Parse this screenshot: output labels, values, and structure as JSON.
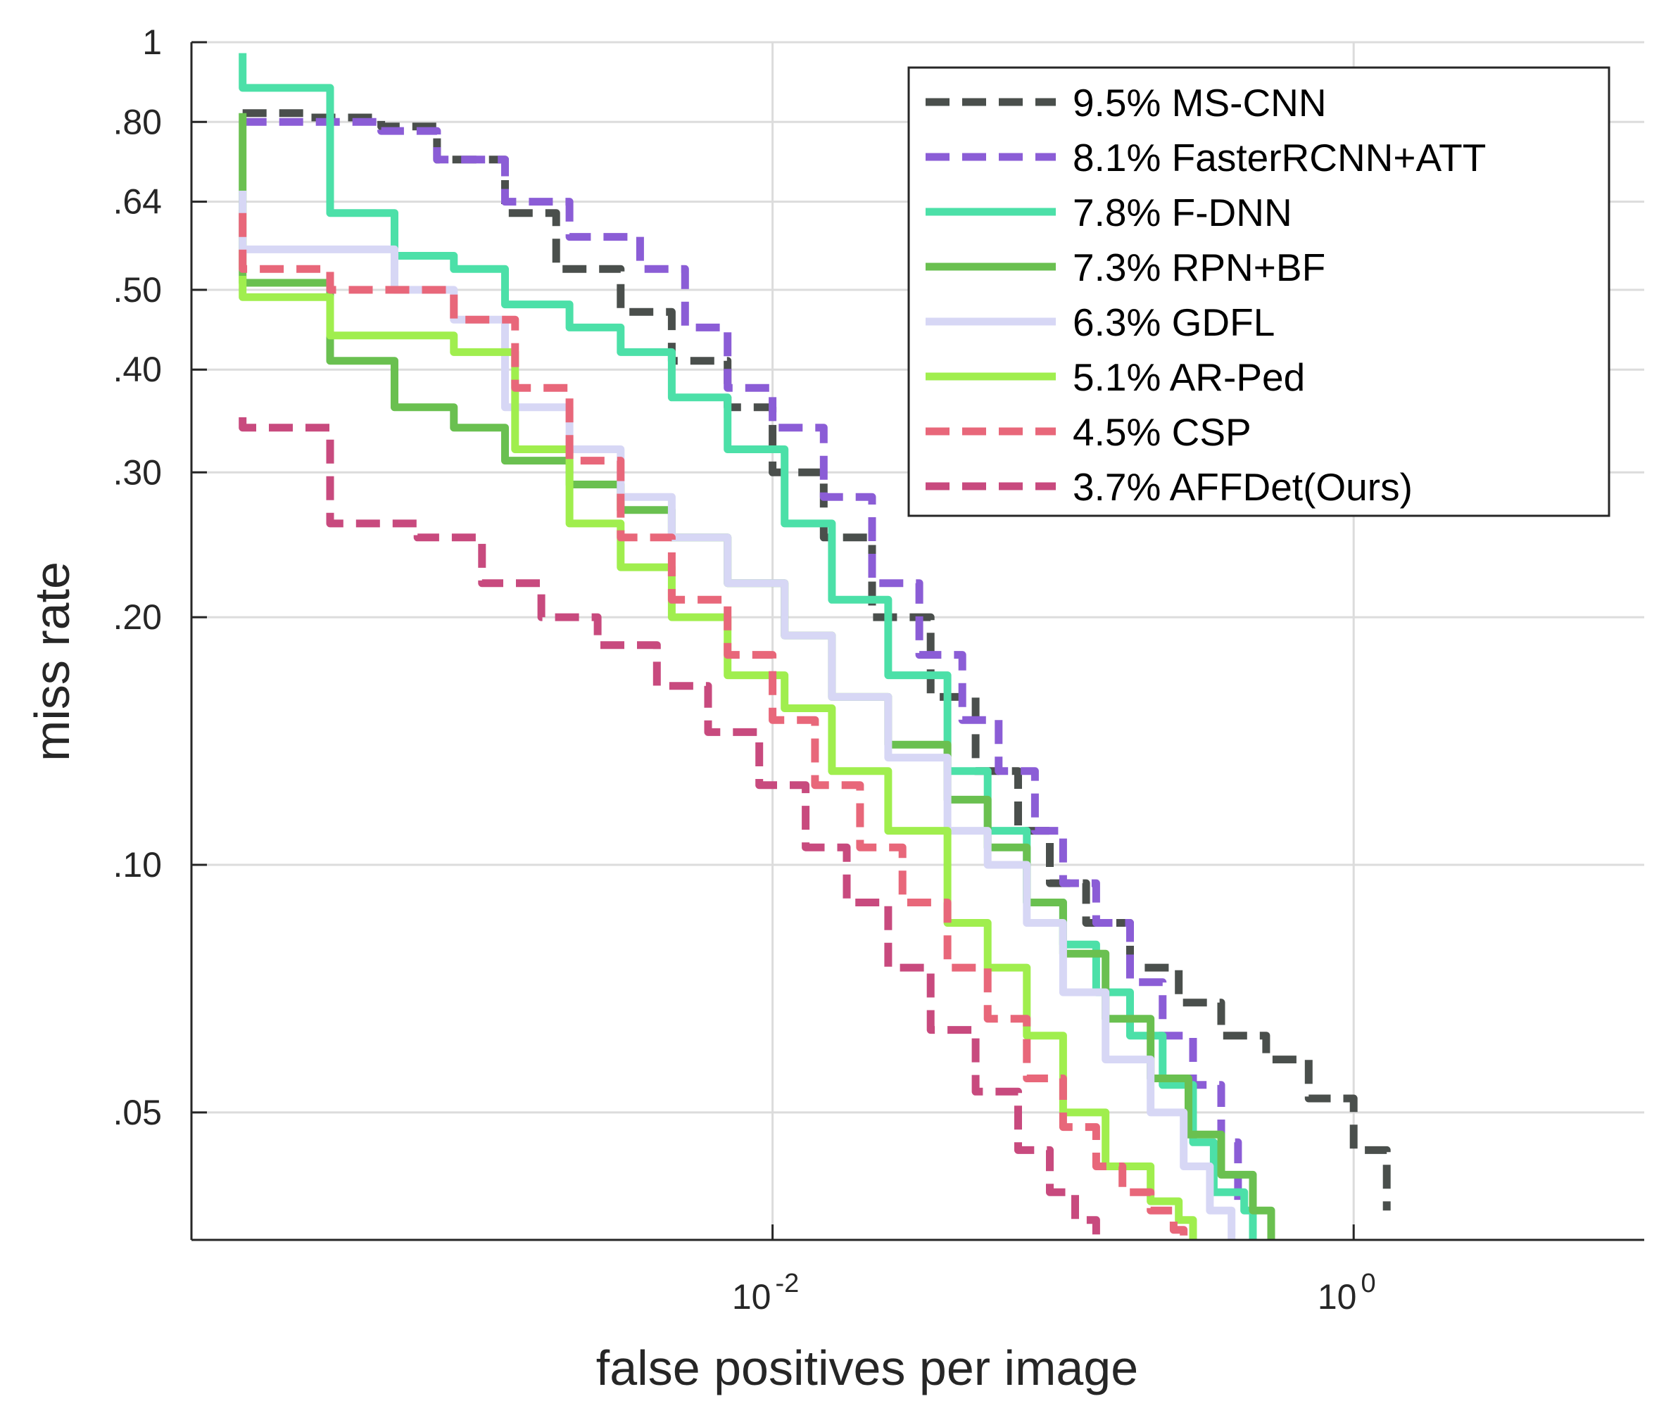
{
  "chart_data": {
    "type": "line",
    "xlabel": "false positives per image",
    "ylabel": "miss rate",
    "xscale": "log",
    "yscale": "log",
    "xlim": [
      0.0001,
      10
    ],
    "ylim": [
      0.035,
      1
    ],
    "grid": true,
    "legend_position": "top-right",
    "x_ticks": [
      {
        "value": 0.01,
        "base": "10",
        "exp": "-2"
      },
      {
        "value": 1,
        "base": "10",
        "exp": "0"
      }
    ],
    "y_ticks": [
      {
        "value": 1,
        "label": "1"
      },
      {
        "value": 0.8,
        "label": ".80"
      },
      {
        "value": 0.64,
        "label": ".64"
      },
      {
        "value": 0.5,
        "label": ".50"
      },
      {
        "value": 0.4,
        "label": ".40"
      },
      {
        "value": 0.3,
        "label": ".30"
      },
      {
        "value": 0.2,
        "label": ".20"
      },
      {
        "value": 0.1,
        "label": ".10"
      },
      {
        "value": 0.05,
        "label": ".05"
      }
    ],
    "series": [
      {
        "name": "MS-CNN",
        "label": "9.5% MS-CNN",
        "color": "#4a4f4c",
        "dash": true,
        "x": [
          0.00015,
          0.00025,
          0.00045,
          0.0007,
          0.0012,
          0.0018,
          0.003,
          0.0045,
          0.007,
          0.01,
          0.015,
          0.022,
          0.035,
          0.05,
          0.07,
          0.09,
          0.12,
          0.17,
          0.25,
          0.35,
          0.5,
          0.7,
          1.0,
          1.3
        ],
        "y": [
          0.82,
          0.81,
          0.79,
          0.72,
          0.62,
          0.53,
          0.47,
          0.41,
          0.36,
          0.3,
          0.25,
          0.2,
          0.16,
          0.13,
          0.11,
          0.095,
          0.085,
          0.075,
          0.068,
          0.062,
          0.058,
          0.052,
          0.045,
          0.038
        ]
      },
      {
        "name": "FasterRCNN+ATT",
        "label": "8.1% FasterRCNN+ATT",
        "color": "#8b5dd6",
        "dash": true,
        "x": [
          0.00015,
          0.00025,
          0.00045,
          0.0007,
          0.0012,
          0.002,
          0.0035,
          0.005,
          0.007,
          0.01,
          0.015,
          0.022,
          0.032,
          0.045,
          0.06,
          0.08,
          0.1,
          0.13,
          0.17,
          0.22,
          0.28,
          0.35,
          0.4
        ],
        "y": [
          0.8,
          0.8,
          0.78,
          0.72,
          0.64,
          0.58,
          0.53,
          0.45,
          0.38,
          0.34,
          0.28,
          0.22,
          0.18,
          0.15,
          0.13,
          0.11,
          0.095,
          0.085,
          0.072,
          0.062,
          0.054,
          0.046,
          0.038
        ]
      },
      {
        "name": "F-DNN",
        "label": "7.8% F-DNN",
        "color": "#4ce0a8",
        "dash": false,
        "x": [
          0.00015,
          0.00015,
          0.0003,
          0.0003,
          0.0005,
          0.0005,
          0.0008,
          0.0012,
          0.002,
          0.003,
          0.0045,
          0.007,
          0.011,
          0.016,
          0.025,
          0.04,
          0.055,
          0.075,
          0.1,
          0.13,
          0.17,
          0.22,
          0.28,
          0.33,
          0.42,
          0.45
        ],
        "y": [
          0.97,
          0.88,
          0.88,
          0.62,
          0.62,
          0.55,
          0.53,
          0.48,
          0.45,
          0.42,
          0.37,
          0.32,
          0.26,
          0.21,
          0.17,
          0.13,
          0.11,
          0.09,
          0.08,
          0.07,
          0.062,
          0.054,
          0.046,
          0.04,
          0.038,
          0.035
        ]
      },
      {
        "name": "RPN+BF",
        "label": "7.3% RPN+BF",
        "color": "#6ac050",
        "dash": false,
        "x": [
          0.00015,
          0.00015,
          0.0003,
          0.0003,
          0.0005,
          0.0005,
          0.0008,
          0.0012,
          0.002,
          0.003,
          0.0045,
          0.007,
          0.011,
          0.016,
          0.025,
          0.04,
          0.055,
          0.075,
          0.1,
          0.14,
          0.2,
          0.27,
          0.35,
          0.45,
          0.52
        ],
        "y": [
          0.82,
          0.51,
          0.51,
          0.41,
          0.41,
          0.36,
          0.34,
          0.31,
          0.29,
          0.27,
          0.25,
          0.22,
          0.19,
          0.16,
          0.14,
          0.12,
          0.105,
          0.09,
          0.078,
          0.065,
          0.055,
          0.047,
          0.042,
          0.038,
          0.035
        ]
      },
      {
        "name": "GDFL",
        "label": "6.3% GDFL",
        "color": "#d7d7f5",
        "dash": false,
        "x": [
          0.00015,
          0.00015,
          0.0005,
          0.0005,
          0.0008,
          0.0012,
          0.002,
          0.003,
          0.0045,
          0.007,
          0.011,
          0.016,
          0.025,
          0.04,
          0.055,
          0.075,
          0.1,
          0.14,
          0.2,
          0.26,
          0.32,
          0.38
        ],
        "y": [
          0.66,
          0.56,
          0.56,
          0.5,
          0.46,
          0.36,
          0.32,
          0.28,
          0.25,
          0.22,
          0.19,
          0.16,
          0.135,
          0.11,
          0.1,
          0.085,
          0.07,
          0.058,
          0.05,
          0.043,
          0.038,
          0.035
        ]
      },
      {
        "name": "AR-Ped",
        "label": "5.1% AR-Ped",
        "color": "#a0ee4e",
        "dash": false,
        "x": [
          0.00015,
          0.00015,
          0.0003,
          0.0003,
          0.0008,
          0.0013,
          0.002,
          0.003,
          0.0045,
          0.007,
          0.011,
          0.016,
          0.025,
          0.04,
          0.055,
          0.075,
          0.1,
          0.14,
          0.2,
          0.25,
          0.28
        ],
        "y": [
          0.52,
          0.49,
          0.49,
          0.44,
          0.42,
          0.32,
          0.26,
          0.23,
          0.2,
          0.17,
          0.155,
          0.13,
          0.11,
          0.085,
          0.075,
          0.062,
          0.05,
          0.043,
          0.039,
          0.037,
          0.035
        ]
      },
      {
        "name": "CSP",
        "label": "4.5% CSP",
        "color": "#e8677a",
        "dash": true,
        "x": [
          0.00015,
          0.00015,
          0.0003,
          0.0003,
          0.0008,
          0.0013,
          0.002,
          0.003,
          0.0045,
          0.007,
          0.01,
          0.014,
          0.02,
          0.028,
          0.04,
          0.055,
          0.075,
          0.1,
          0.13,
          0.16,
          0.2,
          0.24,
          0.26
        ],
        "y": [
          0.62,
          0.53,
          0.53,
          0.5,
          0.46,
          0.38,
          0.31,
          0.25,
          0.21,
          0.18,
          0.15,
          0.125,
          0.105,
          0.09,
          0.075,
          0.065,
          0.055,
          0.048,
          0.043,
          0.04,
          0.038,
          0.036,
          0.035
        ]
      },
      {
        "name": "AFFDet(Ours)",
        "label": "3.7% AFFDet(Ours)",
        "color": "#c84a7e",
        "dash": true,
        "x": [
          0.00015,
          0.00015,
          0.0003,
          0.0003,
          0.0006,
          0.001,
          0.0016,
          0.0025,
          0.004,
          0.006,
          0.009,
          0.013,
          0.018,
          0.025,
          0.035,
          0.05,
          0.07,
          0.09,
          0.11,
          0.13
        ],
        "y": [
          0.35,
          0.34,
          0.34,
          0.26,
          0.25,
          0.22,
          0.2,
          0.185,
          0.165,
          0.145,
          0.125,
          0.105,
          0.09,
          0.075,
          0.063,
          0.053,
          0.045,
          0.04,
          0.037,
          0.035
        ]
      }
    ]
  }
}
